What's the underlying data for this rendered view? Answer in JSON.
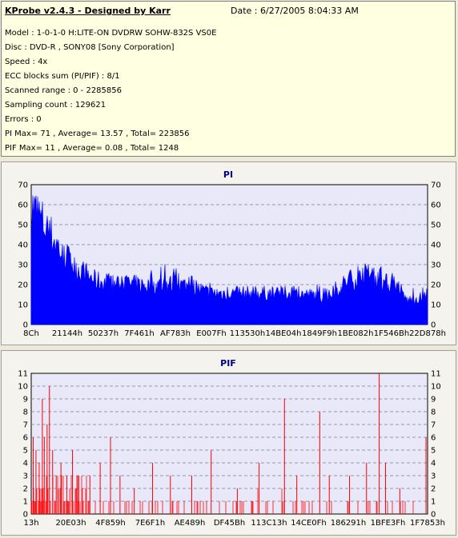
{
  "header": {
    "title": "KProbe v2.4.3 - Designed by Karr",
    "date": "Date : 6/27/2005 8:04:33 AM"
  },
  "info_lines": [
    "Model : 1-0-1-0 H:LITE-ON DVDRW SOHW-832S  VS0E",
    "Disc : DVD-R , SONY08 [Sony Corporation]",
    "Speed : 4x",
    "ECC blocks sum (PI/PIF) : 8/1",
    "Scanned range : 0 - 2285856",
    "Sampling count : 129621",
    "Errors : 0",
    "PI Max= 71 , Average= 13.57 , Total= 223856",
    "PIF Max= 11 , Average= 0.08 , Total= 1248"
  ],
  "colors": {
    "pi": "#0000ff",
    "pif": "#ff0000",
    "plot_bg": "#e8e8f8",
    "title": "#000080"
  },
  "chart_data": [
    {
      "type": "area",
      "title": "PI",
      "ylim": [
        0,
        70
      ],
      "yticks": [
        "0",
        "10",
        "20",
        "30",
        "40",
        "50",
        "60",
        "70"
      ],
      "xticks": [
        "8Ch",
        "21144h",
        "50237h",
        "7F461h",
        "AF783h",
        "E007Fh",
        "113530h",
        "14BE04h",
        "1849F9h",
        "1BE082h",
        "1F546Bh",
        "22D878h"
      ],
      "x": [
        0,
        4,
        8,
        12,
        16,
        20,
        25,
        30,
        35,
        40,
        45,
        50,
        55,
        60,
        65,
        70,
        75,
        80,
        85,
        90,
        95,
        100
      ],
      "values": [
        64,
        52,
        38,
        30,
        24,
        22,
        22,
        21,
        22,
        21,
        17,
        17,
        17,
        17,
        17,
        16,
        15,
        24,
        26,
        22,
        13,
        15
      ],
      "peaks": [
        71,
        56,
        40,
        32,
        26,
        26,
        25,
        28,
        33,
        25,
        22,
        19,
        20,
        19,
        19,
        21,
        19,
        28,
        32,
        28,
        19,
        19
      ]
    },
    {
      "type": "bar",
      "title": "PIF",
      "ylim": [
        0,
        11
      ],
      "yticks": [
        "0",
        "1",
        "2",
        "3",
        "4",
        "5",
        "6",
        "7",
        "8",
        "9",
        "10",
        "11"
      ],
      "xticks": [
        "13h",
        "20E03h",
        "4F859h",
        "7E6F1h",
        "AE489h",
        "DF45Bh",
        "113C13h",
        "14CE0Fh",
        "186291h",
        "1BFE3Fh",
        "1F7853h"
      ],
      "spikes": [
        {
          "x": 0.5,
          "v": 6
        },
        {
          "x": 1.2,
          "v": 5
        },
        {
          "x": 2.0,
          "v": 4
        },
        {
          "x": 2.8,
          "v": 9
        },
        {
          "x": 3.3,
          "v": 6
        },
        {
          "x": 4.0,
          "v": 7
        },
        {
          "x": 4.6,
          "v": 10
        },
        {
          "x": 5.4,
          "v": 5
        },
        {
          "x": 6.3,
          "v": 3
        },
        {
          "x": 7.5,
          "v": 4
        },
        {
          "x": 9.0,
          "v": 3
        },
        {
          "x": 10.4,
          "v": 5
        },
        {
          "x": 12.0,
          "v": 3
        },
        {
          "x": 14.8,
          "v": 3
        },
        {
          "x": 17.4,
          "v": 4
        },
        {
          "x": 20.0,
          "v": 6
        },
        {
          "x": 22.4,
          "v": 3
        },
        {
          "x": 26.0,
          "v": 2
        },
        {
          "x": 30.6,
          "v": 4
        },
        {
          "x": 35.1,
          "v": 3
        },
        {
          "x": 40.5,
          "v": 3
        },
        {
          "x": 45.4,
          "v": 5
        },
        {
          "x": 52.0,
          "v": 2
        },
        {
          "x": 57.5,
          "v": 4
        },
        {
          "x": 63.9,
          "v": 9
        },
        {
          "x": 67.0,
          "v": 3
        },
        {
          "x": 72.8,
          "v": 8
        },
        {
          "x": 75.2,
          "v": 3
        },
        {
          "x": 80.3,
          "v": 3
        },
        {
          "x": 84.6,
          "v": 4
        },
        {
          "x": 87.8,
          "v": 11
        },
        {
          "x": 89.4,
          "v": 4
        },
        {
          "x": 93.0,
          "v": 2
        },
        {
          "x": 99.6,
          "v": 6
        }
      ]
    }
  ]
}
